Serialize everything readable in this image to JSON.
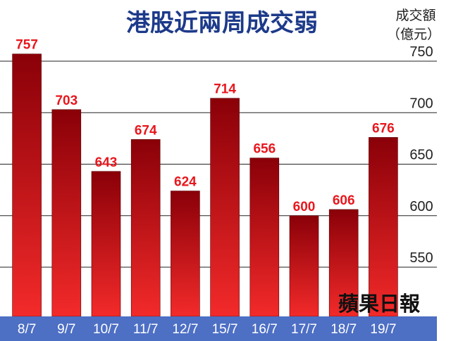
{
  "chart_data": {
    "type": "bar",
    "title": "港股近兩周成交弱",
    "ylabel": "成交額",
    "yunit": "（億元）",
    "categories": [
      "8/7",
      "9/7",
      "10/7",
      "11/7",
      "12/7",
      "15/7",
      "16/7",
      "17/7",
      "18/7",
      "19/7"
    ],
    "values": [
      757,
      703,
      643,
      674,
      624,
      714,
      656,
      600,
      606,
      676
    ],
    "data_labels": [
      "757",
      "703",
      "643",
      "674",
      "624",
      "714",
      "656",
      "600",
      "606",
      "676"
    ],
    "yticks": [
      550,
      600,
      650,
      700,
      750
    ],
    "ytick_labels": [
      "550",
      "600",
      "650",
      "700",
      "750"
    ],
    "ylim": [
      500,
      770
    ],
    "grid": "horizontal",
    "axis_side": "right",
    "legend": "none",
    "colors": {
      "bar_top": "#8a0008",
      "bar_bottom": "#f32a2a",
      "label": "#e8171d",
      "title": "#1d3a8a",
      "axis_band": "#4d6fc4",
      "grid": "#222222"
    }
  },
  "watermark": {
    "text": "蘋果日報"
  }
}
